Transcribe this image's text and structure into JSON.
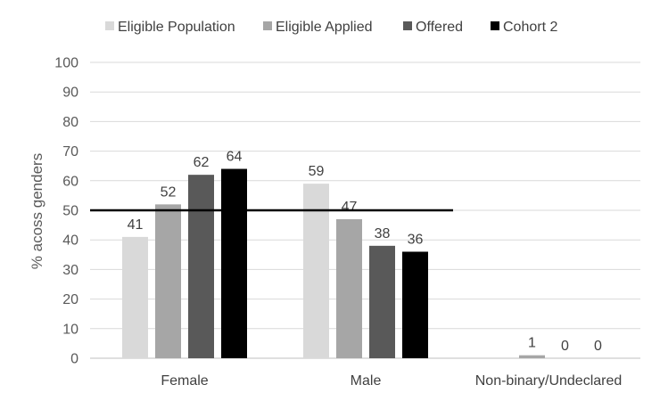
{
  "chart_data": {
    "type": "bar",
    "categories": [
      "Female",
      "Male",
      "Non-binary/Undeclared"
    ],
    "series": [
      {
        "name": "Eligible Population",
        "values": [
          41,
          59,
          null
        ],
        "labels": [
          "41",
          "59",
          ""
        ],
        "color": "#d9d9d9"
      },
      {
        "name": "Eligible Applied",
        "values": [
          52,
          47,
          1
        ],
        "labels": [
          "52",
          "47",
          "1"
        ],
        "color": "#a6a6a6"
      },
      {
        "name": "Offered",
        "values": [
          62,
          38,
          0
        ],
        "labels": [
          "62",
          "38",
          "0"
        ],
        "color": "#595959"
      },
      {
        "name": "Cohort 2",
        "values": [
          64,
          36,
          0
        ],
        "labels": [
          "64",
          "36",
          "0"
        ],
        "color": "#000000"
      }
    ],
    "title": "",
    "xlabel": "",
    "ylabel": "% acoss genders",
    "ylim": [
      0,
      100
    ],
    "yticks": [
      "0",
      "10",
      "20",
      "30",
      "40",
      "50",
      "60",
      "70",
      "80",
      "90",
      "100"
    ],
    "reference_line": {
      "value": 50,
      "color": "#000000"
    },
    "grid": true,
    "legend_position": "top"
  }
}
